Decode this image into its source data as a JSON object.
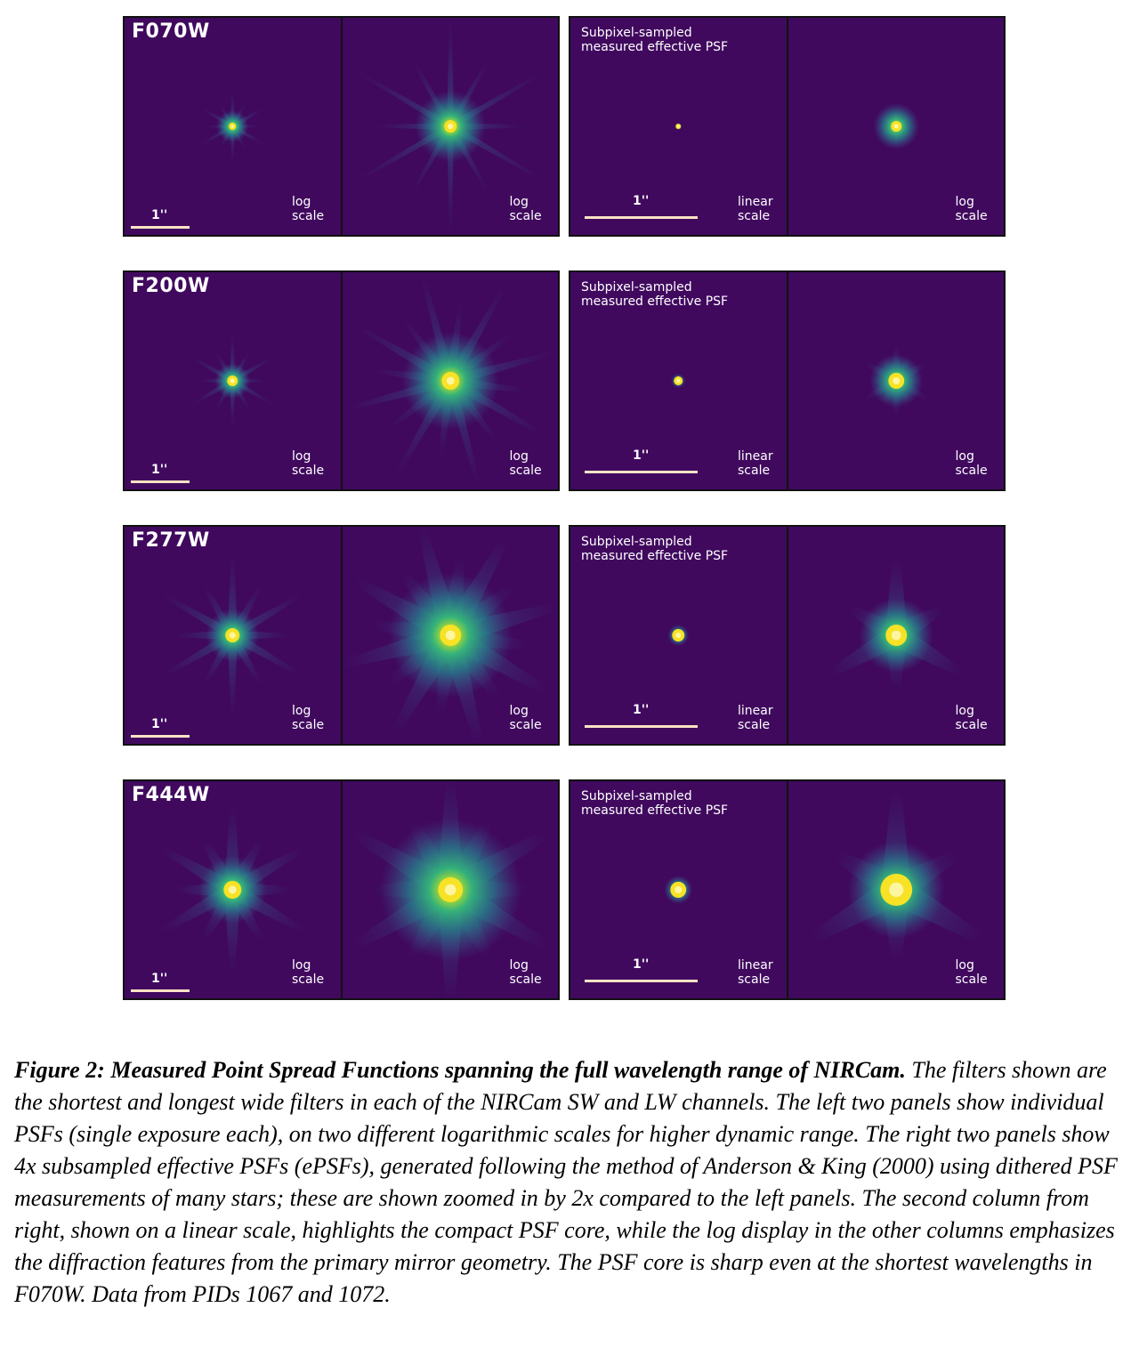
{
  "colors": {
    "panel_background": "#40095e",
    "scale_bar": "#fde3c4",
    "core": "#f7e225"
  },
  "rows": [
    {
      "filter": "F070W",
      "scale_bar_label": "1''",
      "panel_scales": [
        "log\nscale",
        "log\nscale",
        "linear\nscale",
        "log\nscale"
      ],
      "epsf_title": "Subpixel-sampled\nmeasured effective PSF"
    },
    {
      "filter": "F200W",
      "scale_bar_label": "1''",
      "panel_scales": [
        "log\nscale",
        "log\nscale",
        "linear\nscale",
        "log\nscale"
      ],
      "epsf_title": "Subpixel-sampled\nmeasured effective PSF"
    },
    {
      "filter": "F277W",
      "scale_bar_label": "1''",
      "panel_scales": [
        "log\nscale",
        "log\nscale",
        "linear\nscale",
        "log\nscale"
      ],
      "epsf_title": "Subpixel-sampled\nmeasured effective PSF"
    },
    {
      "filter": "F444W",
      "scale_bar_label": "1''",
      "panel_scales": [
        "log\nscale",
        "log\nscale",
        "linear\nscale",
        "log\nscale"
      ],
      "epsf_title": "Subpixel-sampled\nmeasured effective PSF"
    }
  ],
  "caption": {
    "title": "Figure 2: Measured Point Spread Functions spanning the full wavelength range of NIRCam.",
    "body": " The filters shown are the shortest and longest wide filters in each of the NIRCam SW and LW channels. The left two panels show individual PSFs (single exposure each), on two different logarithmic scales for higher dynamic range. The right two panels show 4x subsampled effective PSFs (ePSFs), generated following the method of Anderson & King (2000) using dithered PSF measurements of many stars; these are shown zoomed in by 2x compared to the left panels. The second column from right, shown on a linear scale, highlights the compact PSF core, while the log display in the other columns emphasizes the diffraction features from the primary mirror geometry. The PSF core is sharp even at the shortest wavelengths in F070W. Data from PIDs 1067 and 1072."
  }
}
